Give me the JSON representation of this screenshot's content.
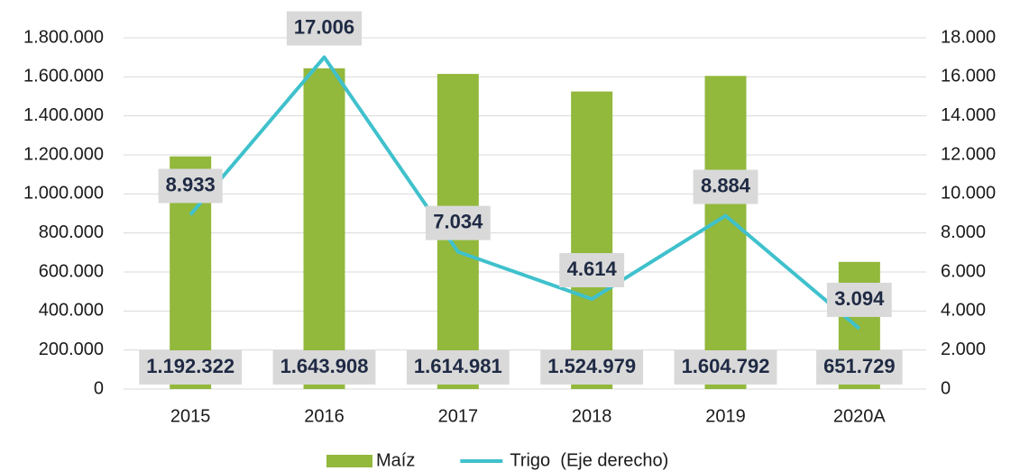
{
  "chart_data": {
    "type": "bar-line",
    "categories": [
      "2015",
      "2016",
      "2017",
      "2018",
      "2019",
      "2020A"
    ],
    "series": [
      {
        "name": "Maíz",
        "color": "#92b83c",
        "type": "bar",
        "axis": "y",
        "values": [
          1192322,
          1643908,
          1614981,
          1524979,
          1604792,
          651729
        ],
        "value_labels": [
          "1.192.322",
          "1.643.908",
          "1.614.981",
          "1.524.979",
          "1.604.792",
          "651.729"
        ]
      },
      {
        "name": "Trigo  (Eje derecho)",
        "color": "#3fc1cc",
        "type": "line",
        "axis": "y2",
        "values": [
          8933,
          17006,
          7034,
          4614,
          8884,
          3094
        ],
        "value_labels": [
          "8.933",
          "17.006",
          "7.034",
          "4.614",
          "8.884",
          "3.094"
        ]
      }
    ],
    "ylim": [
      0,
      1800000
    ],
    "yticks": [
      0,
      {
        "value": 200000,
        "label": "200.000"
      },
      {
        "value": 400000,
        "label": "400.000"
      },
      {
        "value": 600000,
        "label": "600.000"
      },
      {
        "value": 800000,
        "label": "800.000"
      },
      {
        "value": 1000000,
        "label": "1.000.000"
      },
      {
        "value": 1200000,
        "label": "1.200.000"
      },
      {
        "value": 1400000,
        "label": "1.400.000"
      },
      {
        "value": 1600000,
        "label": "1.600.000"
      },
      {
        "value": 1800000,
        "label": "1.800.000"
      }
    ],
    "y2lim": [
      0,
      18000
    ],
    "y2ticks": [
      0,
      {
        "value": 2000,
        "label": "2.000"
      },
      {
        "value": 4000,
        "label": "4.000"
      },
      {
        "value": 6000,
        "label": "6.000"
      },
      {
        "value": 8000,
        "label": "8.000"
      },
      {
        "value": 10000,
        "label": "10.000"
      },
      {
        "value": 12000,
        "label": "12.000"
      },
      {
        "value": 14000,
        "label": "14.000"
      },
      {
        "value": 16000,
        "label": "16.000"
      },
      {
        "value": 18000,
        "label": "18.000"
      }
    ],
    "grid": true,
    "legend": "bottom"
  }
}
